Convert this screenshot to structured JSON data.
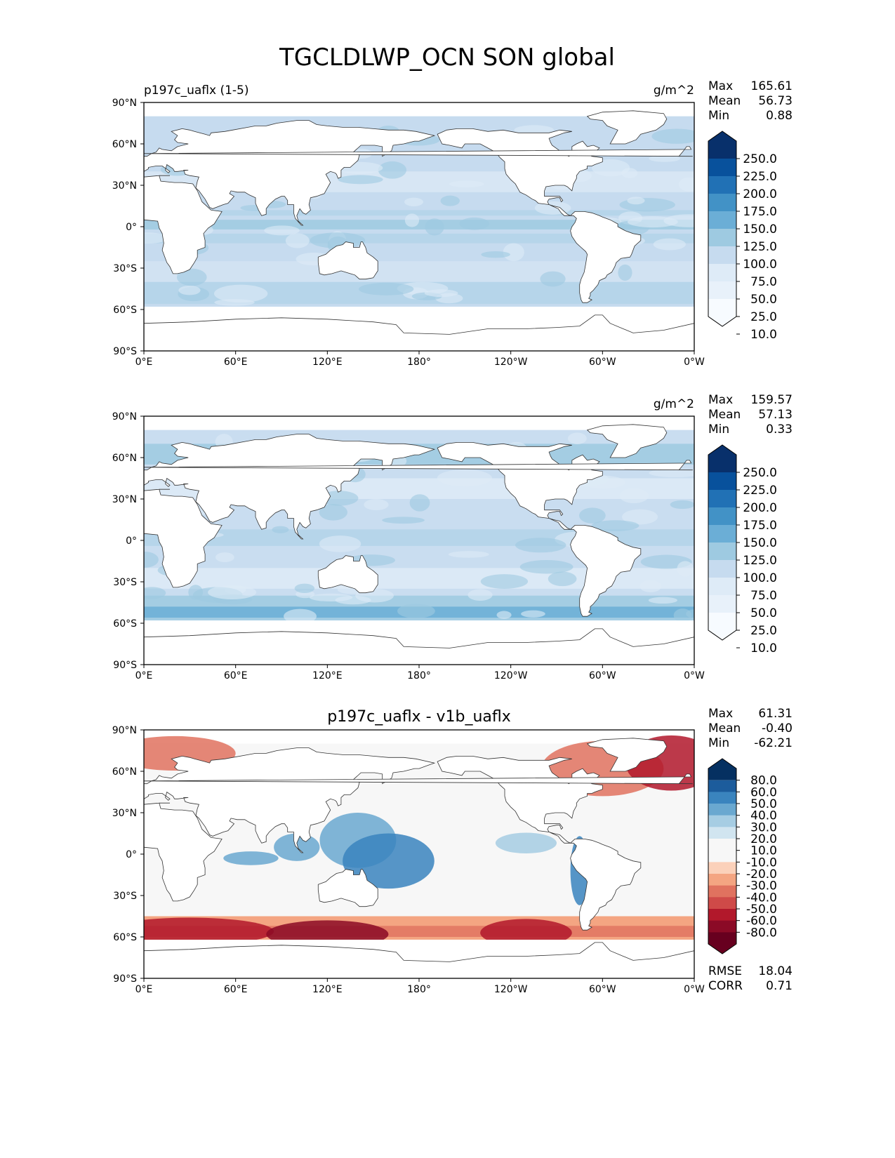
{
  "figure": {
    "title": "TGCLDLWP_OCN SON global"
  },
  "axes_ticks": {
    "lon": [
      "0°E",
      "60°E",
      "120°E",
      "180°",
      "120°W",
      "60°W",
      "0°W"
    ],
    "lat": [
      "90°N",
      "60°N",
      "30°N",
      "0°",
      "30°S",
      "60°S",
      "90°S"
    ]
  },
  "chart_data": [
    {
      "type": "heatmap",
      "left_title": "p197c_uaflx (1-5)",
      "units": "g/m^2",
      "xlim": [
        0,
        360
      ],
      "ylim": [
        -90,
        90
      ],
      "stats": [
        {
          "label": "Max",
          "value": "165.61"
        },
        {
          "label": "Mean",
          "value": "56.73"
        },
        {
          "label": "Min",
          "value": "0.88"
        }
      ],
      "colorbar": {
        "levels": [
          "250.0",
          "225.0",
          "200.0",
          "175.0",
          "150.0",
          "125.0",
          "100.0",
          "75.0",
          "50.0",
          "25.0",
          "10.0"
        ],
        "colors": [
          "#08306b",
          "#08519c",
          "#2171b5",
          "#4292c6",
          "#6baed6",
          "#9ecae1",
          "#c6dbef",
          "#deebf7",
          "#e8f1fa",
          "#f7fbff"
        ]
      }
    },
    {
      "type": "heatmap",
      "left_title": "",
      "units": "g/m^2",
      "xlim": [
        0,
        360
      ],
      "ylim": [
        -90,
        90
      ],
      "stats": [
        {
          "label": "Max",
          "value": "159.57"
        },
        {
          "label": "Mean",
          "value": "57.13"
        },
        {
          "label": "Min",
          "value": "0.33"
        }
      ],
      "colorbar": {
        "levels": [
          "250.0",
          "225.0",
          "200.0",
          "175.0",
          "150.0",
          "125.0",
          "100.0",
          "75.0",
          "50.0",
          "25.0",
          "10.0"
        ],
        "colors": [
          "#08306b",
          "#08519c",
          "#2171b5",
          "#4292c6",
          "#6baed6",
          "#9ecae1",
          "#c6dbef",
          "#deebf7",
          "#e8f1fa",
          "#f7fbff"
        ]
      }
    },
    {
      "type": "heatmap",
      "center_title": "p197c_uaflx - v1b_uaflx",
      "xlim": [
        0,
        360
      ],
      "ylim": [
        -90,
        90
      ],
      "stats": [
        {
          "label": "Max",
          "value": "61.31"
        },
        {
          "label": "Mean",
          "value": "-0.40"
        },
        {
          "label": "Min",
          "value": "-62.21"
        }
      ],
      "bottom_stats": [
        {
          "label": "RMSE",
          "value": "18.04"
        },
        {
          "label": "CORR",
          "value": "0.71"
        }
      ],
      "colorbar": {
        "levels": [
          "80.0",
          "60.0",
          "50.0",
          "40.0",
          "30.0",
          "20.0",
          "10.0",
          "-10.0",
          "-20.0",
          "-30.0",
          "-40.0",
          "-50.0",
          "-60.0",
          "-80.0"
        ],
        "colors": [
          "#053061",
          "#1c5c9c",
          "#3a84be",
          "#6aa8d0",
          "#a6cde3",
          "#d1e5f0",
          "#f7f7f7",
          "#f7f7f7",
          "#fbd1ba",
          "#f4a582",
          "#e0725f",
          "#cf4a48",
          "#b2182b",
          "#8b0a26",
          "#67001f"
        ]
      }
    }
  ]
}
